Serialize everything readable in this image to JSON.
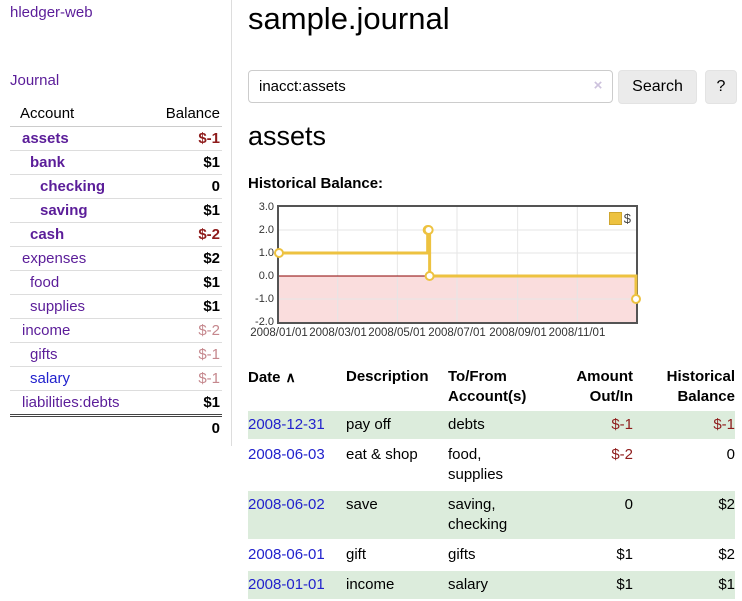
{
  "app_title": "hledger-web",
  "sidebar": {
    "journal_link": "Journal",
    "accounts": {
      "col_account": "Account",
      "col_balance": "Balance",
      "rows": [
        {
          "name": "assets",
          "balance": "$-1"
        },
        {
          "name": "bank",
          "balance": "$1"
        },
        {
          "name": "checking",
          "balance": "0"
        },
        {
          "name": "saving",
          "balance": "$1"
        },
        {
          "name": "cash",
          "balance": "$-2"
        },
        {
          "name": "expenses",
          "balance": "$2"
        },
        {
          "name": "food",
          "balance": "$1"
        },
        {
          "name": "supplies",
          "balance": "$1"
        },
        {
          "name": "income",
          "balance": "$-2"
        },
        {
          "name": "gifts",
          "balance": "$-1"
        },
        {
          "name": "salary",
          "balance": "$-1"
        },
        {
          "name": "liabilities:debts",
          "balance": "$1"
        }
      ],
      "total": "0"
    }
  },
  "header": {
    "title": "sample.journal"
  },
  "search": {
    "value": "inacct:assets",
    "clear_icon": "×",
    "search_button": "Search",
    "help_button": "?"
  },
  "account_page": {
    "heading": "assets",
    "chart_label": "Historical Balance:"
  },
  "chart_data": {
    "type": "line",
    "step": true,
    "title": "Historical Balance",
    "series": [
      {
        "name": "$",
        "color": "#edc240",
        "x": [
          "2008-01-01",
          "2008-06-01",
          "2008-06-02",
          "2008-06-03",
          "2008-12-31"
        ],
        "values": [
          1,
          2,
          2,
          0,
          -1
        ]
      }
    ],
    "ylim": [
      -2,
      3
    ],
    "y_tick_labels": [
      "3.0",
      "2.0",
      "1.0",
      "0.0",
      "-1.0",
      "-2.0"
    ],
    "y_tick_values": [
      3,
      2,
      1,
      0,
      -1,
      -2
    ],
    "x_tick_labels": [
      "2008/01/01",
      "2008/03/01",
      "2008/05/01",
      "2008/07/01",
      "2008/09/01",
      "2008/11/01"
    ],
    "x_tick_days": [
      0,
      60,
      121,
      182,
      244,
      305
    ],
    "x_range_days": [
      0,
      365
    ],
    "grid": true,
    "legend": "$",
    "legend_position": "top-right",
    "zero_line_color": "#8b0000",
    "negative_fill": "#fadddd",
    "grid_color": "#e6e6e6"
  },
  "register": {
    "col_date": "Date",
    "sort_icon": "∧",
    "col_description": "Description",
    "col_accounts": "To/From Account(s)",
    "col_amount": "Amount Out/In",
    "col_balance": "Historical Balance",
    "rows": [
      {
        "date": "2008-12-31",
        "description": "pay off",
        "accounts": "debts",
        "amount": "$-1",
        "balance": "$-1"
      },
      {
        "date": "2008-06-03",
        "description": "eat & shop",
        "accounts": "food, supplies",
        "amount": "$-2",
        "balance": "0"
      },
      {
        "date": "2008-06-02",
        "description": "save",
        "accounts": "saving, checking",
        "amount": "0",
        "balance": "$2"
      },
      {
        "date": "2008-06-01",
        "description": "gift",
        "accounts": "gifts",
        "amount": "$1",
        "balance": "$2"
      },
      {
        "date": "2008-01-01",
        "description": "income",
        "accounts": "salary",
        "amount": "$1",
        "balance": "$1"
      }
    ]
  },
  "colors": {
    "link_purple": "#5b1d99",
    "link_blue": "#2222cd",
    "negative_strong": "#8e1b1b",
    "negative_soft": "#c5878d",
    "row_green": "#dcecdc",
    "series_gold": "#edc240",
    "button_gray": "#ebebeb"
  }
}
